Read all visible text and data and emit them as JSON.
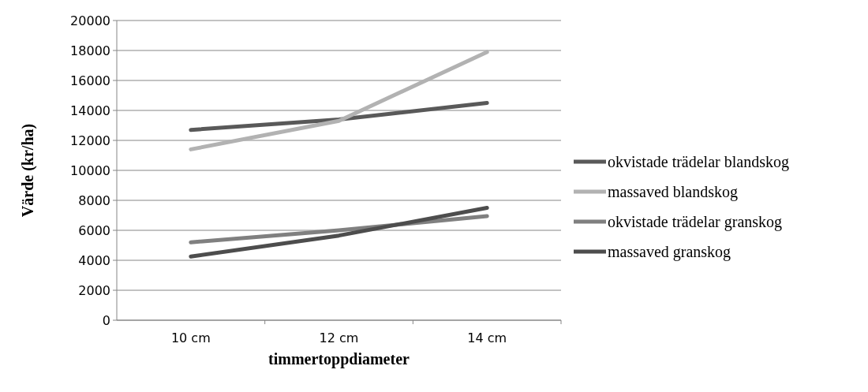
{
  "chart_data": {
    "type": "line",
    "xlabel": "timmertoppdiameter",
    "ylabel": "Värde (kr/ha)",
    "categories": [
      "10 cm",
      "12 cm",
      "14 cm"
    ],
    "series": [
      {
        "name": "okvistade trädelar blandskog",
        "color": "#595959",
        "values": [
          12700,
          13400,
          14500
        ]
      },
      {
        "name": "massaved blandskog",
        "color": "#b2b2b2",
        "values": [
          11400,
          13300,
          17900
        ]
      },
      {
        "name": "okvistade trädelar granskog",
        "color": "#808080",
        "values": [
          5200,
          6000,
          6950
        ]
      },
      {
        "name": "massaved granskog",
        "color": "#4d4d4d",
        "values": [
          4250,
          5650,
          7500
        ]
      }
    ],
    "ylim": [
      0,
      20000
    ],
    "yticks": [
      0,
      2000,
      4000,
      6000,
      8000,
      10000,
      12000,
      14000,
      16000,
      18000,
      20000
    ],
    "grid": "y",
    "legend": "right",
    "marker": "none",
    "line_style": "solid"
  }
}
